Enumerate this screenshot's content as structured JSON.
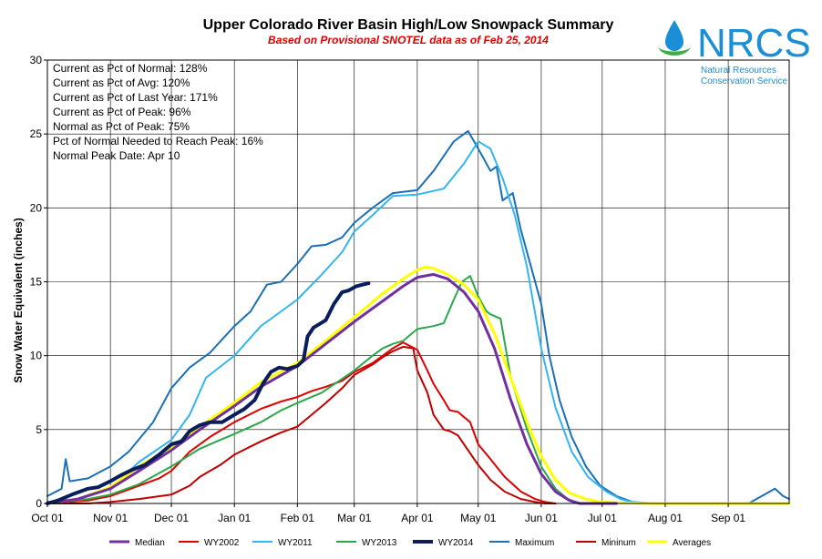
{
  "logo": {
    "acronym": "NRCS",
    "line1": "Natural Resources",
    "line2": "Conservation Service",
    "color": "#1a8fd6",
    "drop_color": "#1a8fd6",
    "leaf_color": "#3fae49"
  },
  "stats": [
    "Current  as Pct of Normal: 128%",
    "Current  as Pct of Avg: 120%",
    "Current  as Pct of Last Year: 171%",
    "Current  as Pct of Peak: 96%",
    "Normal  as Pct of Peak: 75%",
    "Pct of Normal Needed  to Reach Peak: 16%",
    "Normal Peak Date: Apr 10"
  ],
  "chart_data": {
    "type": "line",
    "title": "Upper Colorado River Basin High/Low Snowpack Summary",
    "subtitle": "Based on Provisional SNOTEL data as of Feb 25, 2014",
    "xlabel": "",
    "ylabel": "Snow Water Equivalent (inches)",
    "xlim": [
      0,
      365
    ],
    "ylim": [
      0,
      30
    ],
    "yticks": [
      0,
      5,
      10,
      15,
      20,
      25,
      30
    ],
    "x_tick_positions": [
      0,
      31,
      61,
      92,
      123,
      151,
      182,
      212,
      243,
      273,
      304,
      335
    ],
    "x_tick_labels": [
      "Oct 01",
      "Nov 01",
      "Dec 01",
      "Jan 01",
      "Feb 01",
      "Mar 01",
      "Apr 01",
      "May 01",
      "Jun 01",
      "Jul 01",
      "Aug 01",
      "Sep 01"
    ],
    "grid": true,
    "legend_position": "bottom",
    "series": [
      {
        "name": "Median",
        "color": "#7030a0",
        "width": 3,
        "x": [
          0,
          15,
          31,
          45,
          61,
          75,
          92,
          105,
          123,
          137,
          151,
          165,
          175,
          182,
          190,
          197,
          205,
          212,
          220,
          228,
          236,
          243,
          250,
          257,
          262,
          270,
          280
        ],
        "y": [
          0,
          0.3,
          1.0,
          2.2,
          3.6,
          5.0,
          6.6,
          7.9,
          9.3,
          10.8,
          12.3,
          13.7,
          14.7,
          15.3,
          15.5,
          15.2,
          14.3,
          13.0,
          10.5,
          7.0,
          4.0,
          2.0,
          0.8,
          0.2,
          0,
          0,
          0
        ]
      },
      {
        "name": "WY2002",
        "color": "#e00000",
        "width": 2,
        "x": [
          0,
          20,
          31,
          45,
          55,
          61,
          70,
          80,
          92,
          105,
          115,
          123,
          130,
          137,
          145,
          151,
          160,
          165,
          170,
          175,
          182,
          187,
          190,
          195,
          198,
          202,
          208,
          212,
          218,
          225,
          233,
          240,
          245,
          250
        ],
        "y": [
          0,
          0.2,
          0.5,
          1.2,
          1.7,
          2.2,
          3.5,
          4.5,
          5.5,
          6.4,
          6.9,
          7.2,
          7.6,
          7.9,
          8.3,
          8.9,
          9.5,
          10.0,
          10.5,
          10.9,
          10.4,
          9.0,
          8.1,
          7.0,
          6.3,
          6.2,
          5.5,
          4.0,
          3.0,
          1.8,
          0.8,
          0.3,
          0.1,
          0
        ]
      },
      {
        "name": "WY2011",
        "color": "#33b5f0",
        "width": 2,
        "x": [
          0,
          15,
          31,
          45,
          61,
          70,
          78,
          92,
          105,
          115,
          123,
          135,
          145,
          151,
          160,
          170,
          182,
          195,
          205,
          212,
          218,
          224,
          230,
          236,
          243,
          250,
          258,
          266,
          275,
          282,
          290
        ],
        "y": [
          0.1,
          0.3,
          1.0,
          2.8,
          4.3,
          6.0,
          8.5,
          10.0,
          12.0,
          13.0,
          13.8,
          15.5,
          17.0,
          18.4,
          19.5,
          20.8,
          20.9,
          21.3,
          23.0,
          24.5,
          24.0,
          22.0,
          19.5,
          16.0,
          10.5,
          6.5,
          3.5,
          1.8,
          0.8,
          0.3,
          0
        ]
      },
      {
        "name": "WY2013",
        "color": "#2aa84a",
        "width": 2,
        "x": [
          0,
          20,
          31,
          45,
          61,
          75,
          85,
          92,
          105,
          115,
          123,
          135,
          151,
          160,
          165,
          170,
          175,
          182,
          190,
          195,
          200,
          204,
          208,
          212,
          216,
          218,
          223,
          228,
          236,
          243,
          250,
          256,
          262
        ],
        "y": [
          0,
          0.3,
          0.6,
          1.3,
          2.5,
          3.7,
          4.3,
          4.7,
          5.5,
          6.3,
          6.8,
          7.5,
          9.0,
          10.0,
          10.5,
          10.8,
          11.0,
          11.8,
          12.0,
          12.2,
          13.8,
          15.0,
          15.4,
          14.0,
          13.0,
          12.8,
          12.5,
          8.5,
          5.0,
          2.5,
          1.0,
          0.3,
          0
        ]
      },
      {
        "name": "WY2014",
        "color": "#0a1e5c",
        "width": 4,
        "x": [
          0,
          5,
          12,
          20,
          25,
          31,
          36,
          42,
          48,
          55,
          61,
          66,
          70,
          75,
          80,
          86,
          92,
          97,
          102,
          106,
          110,
          114,
          118,
          123,
          126,
          128,
          131,
          137,
          141,
          145,
          148,
          152,
          155,
          158
        ],
        "y": [
          0,
          0.2,
          0.6,
          1.0,
          1.1,
          1.5,
          1.9,
          2.3,
          2.6,
          3.3,
          4.0,
          4.2,
          4.9,
          5.3,
          5.5,
          5.5,
          6.0,
          6.4,
          7.0,
          8.1,
          8.9,
          9.2,
          9.1,
          9.3,
          9.7,
          11.3,
          11.9,
          12.4,
          13.5,
          14.3,
          14.4,
          14.7,
          14.8,
          14.9
        ]
      },
      {
        "name": "Maximum",
        "color": "#1a70b8",
        "width": 2,
        "x": [
          0,
          7,
          9,
          11,
          20,
          31,
          40,
          52,
          61,
          70,
          80,
          92,
          100,
          108,
          115,
          123,
          130,
          137,
          145,
          151,
          160,
          170,
          182,
          190,
          200,
          207,
          212,
          218,
          221,
          224,
          229,
          233,
          238,
          243,
          247,
          252,
          258,
          265,
          272,
          280,
          288,
          300,
          330,
          345,
          358,
          362,
          365
        ],
        "y": [
          0.5,
          1.0,
          3.0,
          1.5,
          1.7,
          2.5,
          3.5,
          5.5,
          7.8,
          9.2,
          10.2,
          12.0,
          13.0,
          14.8,
          15.0,
          16.2,
          17.4,
          17.5,
          18.0,
          19.0,
          20.0,
          21.0,
          21.2,
          22.5,
          24.5,
          25.2,
          24.0,
          22.5,
          22.8,
          20.5,
          21.0,
          18.5,
          16.0,
          13.5,
          10.0,
          7.0,
          4.5,
          2.5,
          1.2,
          0.5,
          0.1,
          0,
          0,
          0,
          1.0,
          0.5,
          0.3
        ]
      },
      {
        "name": "Mininum",
        "color": "#c00000",
        "width": 2,
        "x": [
          0,
          20,
          31,
          45,
          61,
          70,
          75,
          85,
          92,
          105,
          115,
          123,
          130,
          137,
          145,
          151,
          160,
          165,
          170,
          175,
          180,
          182,
          187,
          190,
          195,
          198,
          202,
          208,
          212,
          218,
          225,
          233,
          240,
          245,
          250
        ],
        "y": [
          0,
          0,
          0.1,
          0.3,
          0.6,
          1.2,
          1.8,
          2.6,
          3.3,
          4.2,
          4.8,
          5.2,
          6.0,
          6.8,
          7.8,
          8.7,
          9.4,
          9.9,
          10.3,
          10.6,
          10.5,
          9.0,
          7.5,
          6.0,
          5.0,
          4.9,
          4.6,
          3.4,
          2.6,
          1.6,
          0.8,
          0.3,
          0.1,
          0,
          0
        ]
      },
      {
        "name": "Averages",
        "color": "#ffff00",
        "width": 3,
        "x": [
          0,
          15,
          31,
          45,
          61,
          75,
          92,
          105,
          123,
          137,
          151,
          165,
          175,
          182,
          186,
          190,
          197,
          205,
          212,
          220,
          228,
          236,
          243,
          250,
          257,
          265,
          272,
          280,
          300,
          365
        ],
        "y": [
          0,
          0.3,
          1.1,
          2.5,
          3.8,
          5.2,
          6.8,
          8.2,
          9.5,
          11.0,
          12.6,
          14.2,
          15.2,
          15.8,
          16.0,
          15.9,
          15.5,
          14.8,
          13.8,
          11.5,
          8.5,
          5.5,
          3.2,
          1.6,
          0.7,
          0.3,
          0.1,
          0.05,
          0,
          0
        ]
      }
    ]
  }
}
